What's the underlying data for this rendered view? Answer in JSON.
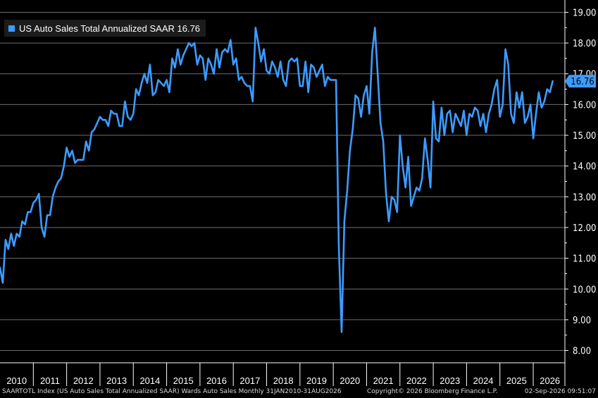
{
  "chart_data": {
    "type": "line",
    "series": [
      {
        "name": "US Auto Sales Total Annualized SAAR",
        "color": "#3d9bff",
        "x": [
          "2010-01",
          "2010-02",
          "2010-03",
          "2010-04",
          "2010-05",
          "2010-06",
          "2010-07",
          "2010-08",
          "2010-09",
          "2010-10",
          "2010-11",
          "2010-12",
          "2011-01",
          "2011-02",
          "2011-03",
          "2011-04",
          "2011-05",
          "2011-06",
          "2011-07",
          "2011-08",
          "2011-09",
          "2011-10",
          "2011-11",
          "2011-12",
          "2012-01",
          "2012-02",
          "2012-03",
          "2012-04",
          "2012-05",
          "2012-06",
          "2012-07",
          "2012-08",
          "2012-09",
          "2012-10",
          "2012-11",
          "2012-12",
          "2013-01",
          "2013-02",
          "2013-03",
          "2013-04",
          "2013-05",
          "2013-06",
          "2013-07",
          "2013-08",
          "2013-09",
          "2013-10",
          "2013-11",
          "2013-12",
          "2014-01",
          "2014-02",
          "2014-03",
          "2014-04",
          "2014-05",
          "2014-06",
          "2014-07",
          "2014-08",
          "2014-09",
          "2014-10",
          "2014-11",
          "2014-12",
          "2015-01",
          "2015-02",
          "2015-03",
          "2015-04",
          "2015-05",
          "2015-06",
          "2015-07",
          "2015-08",
          "2015-09",
          "2015-10",
          "2015-11",
          "2015-12",
          "2016-01",
          "2016-02",
          "2016-03",
          "2016-04",
          "2016-05",
          "2016-06",
          "2016-07",
          "2016-08",
          "2016-09",
          "2016-10",
          "2016-11",
          "2016-12",
          "2017-01",
          "2017-02",
          "2017-03",
          "2017-04",
          "2017-05",
          "2017-06",
          "2017-07",
          "2017-08",
          "2017-09",
          "2017-10",
          "2017-11",
          "2017-12",
          "2018-01",
          "2018-02",
          "2018-03",
          "2018-04",
          "2018-05",
          "2018-06",
          "2018-07",
          "2018-08",
          "2018-09",
          "2018-10",
          "2018-11",
          "2018-12",
          "2019-01",
          "2019-02",
          "2019-03",
          "2019-04",
          "2019-05",
          "2019-06",
          "2019-07",
          "2019-08",
          "2019-09",
          "2019-10",
          "2019-11",
          "2019-12",
          "2020-01",
          "2020-02",
          "2020-03",
          "2020-04",
          "2020-05",
          "2020-06",
          "2020-07",
          "2020-08",
          "2020-09",
          "2020-10",
          "2020-11",
          "2020-12",
          "2021-01",
          "2021-02",
          "2021-03",
          "2021-04",
          "2021-05",
          "2021-06",
          "2021-07",
          "2021-08",
          "2021-09",
          "2021-10",
          "2021-11",
          "2021-12",
          "2022-01",
          "2022-02",
          "2022-03",
          "2022-04",
          "2022-05",
          "2022-06",
          "2022-07",
          "2022-08",
          "2022-09",
          "2022-10",
          "2022-11",
          "2022-12",
          "2023-01",
          "2023-02",
          "2023-03",
          "2023-04",
          "2023-05",
          "2023-06",
          "2023-07",
          "2023-08",
          "2023-09",
          "2023-10",
          "2023-11",
          "2023-12",
          "2024-01",
          "2024-02",
          "2024-03",
          "2024-04",
          "2024-05",
          "2024-06",
          "2024-07",
          "2024-08",
          "2024-09",
          "2024-10",
          "2024-11",
          "2024-12",
          "2025-01",
          "2025-02",
          "2025-03",
          "2025-04",
          "2025-05",
          "2025-06",
          "2025-07",
          "2025-08",
          "2025-09",
          "2025-10",
          "2025-11",
          "2025-12",
          "2026-01",
          "2026-02",
          "2026-03",
          "2026-04",
          "2026-05",
          "2026-06",
          "2026-07",
          "2026-08"
        ],
        "values": [
          10.7,
          10.2,
          11.6,
          11.3,
          11.8,
          11.4,
          11.8,
          11.7,
          12.2,
          12.1,
          12.5,
          12.5,
          12.8,
          12.9,
          13.1,
          12.0,
          11.7,
          12.4,
          12.4,
          13.0,
          13.3,
          13.5,
          13.6,
          14.0,
          14.6,
          14.3,
          14.5,
          14.1,
          14.2,
          14.2,
          14.2,
          14.8,
          14.5,
          15.1,
          15.2,
          15.4,
          15.6,
          15.5,
          15.5,
          15.3,
          15.8,
          15.7,
          15.7,
          15.3,
          15.3,
          16.1,
          15.6,
          15.5,
          15.7,
          16.5,
          16.3,
          16.7,
          17.0,
          16.7,
          17.3,
          16.3,
          16.4,
          16.8,
          16.7,
          16.6,
          16.8,
          16.4,
          17.5,
          17.2,
          17.8,
          17.3,
          17.6,
          17.8,
          18.0,
          17.9,
          18.0,
          17.3,
          17.6,
          17.5,
          16.8,
          17.5,
          17.3,
          17.0,
          17.8,
          17.2,
          17.7,
          17.8,
          17.7,
          18.1,
          17.3,
          17.5,
          16.8,
          16.9,
          16.7,
          16.6,
          16.6,
          16.1,
          18.5,
          18.0,
          17.4,
          17.8,
          17.1,
          17.0,
          17.4,
          17.2,
          16.9,
          17.4,
          16.8,
          16.6,
          17.4,
          17.5,
          17.4,
          17.5,
          16.6,
          16.6,
          17.4,
          16.4,
          17.3,
          17.2,
          16.9,
          17.1,
          17.3,
          16.6,
          16.9,
          16.8,
          16.8,
          16.8,
          11.4,
          8.6,
          12.2,
          13.2,
          14.5,
          15.2,
          16.3,
          16.2,
          15.6,
          16.3,
          16.6,
          15.7,
          17.7,
          18.5,
          17.0,
          15.4,
          14.8,
          13.1,
          12.2,
          13.0,
          12.9,
          12.5,
          15.0,
          14.0,
          13.3,
          14.3,
          12.7,
          13.0,
          13.3,
          13.2,
          13.6,
          14.9,
          14.2,
          13.3,
          16.1,
          14.9,
          14.8,
          15.9,
          15.0,
          15.7,
          15.8,
          15.1,
          15.7,
          15.5,
          15.3,
          15.8,
          15.0,
          15.7,
          15.6,
          15.9,
          15.8,
          15.3,
          15.7,
          15.1,
          15.7,
          16.0,
          16.5,
          16.8,
          15.6,
          16.0,
          17.8,
          17.3,
          15.7,
          15.4,
          16.4,
          15.9,
          16.4,
          15.4,
          15.6,
          16.0,
          14.9,
          15.7,
          16.4,
          15.9,
          16.1,
          16.5,
          16.4,
          16.76
        ]
      }
    ],
    "last_value_label": "16.76",
    "legend": {
      "label": "US Auto Sales Total Annualized SAAR 16.76",
      "placement": "top-left"
    },
    "x_tick_labels": [
      "2010",
      "2011",
      "2012",
      "2013",
      "2014",
      "2015",
      "2016",
      "2017",
      "2018",
      "2019",
      "2020",
      "2021",
      "2022",
      "2023",
      "2024",
      "2025",
      "2026"
    ],
    "y_tick_labels": [
      "8.00",
      "9.00",
      "10.00",
      "11.00",
      "12.00",
      "13.00",
      "14.00",
      "15.00",
      "16.00",
      "17.00",
      "18.00",
      "19.00"
    ],
    "ylim": [
      7.6,
      19.4
    ],
    "y_axis_side": "right",
    "grid": true,
    "background": "#000000",
    "grid_color": "#6e6e6e",
    "label_box_color": "#3d9bff"
  },
  "footer": {
    "left": "SAARTOTL Index (US Auto Sales Total Annualized SAAR) Wards Auto Sales Monthly 31JAN2010-31AUG2026",
    "center": "Copyright© 2026 Bloomberg Finance L.P.",
    "right": "02-Sep-2026 09:51:07"
  }
}
